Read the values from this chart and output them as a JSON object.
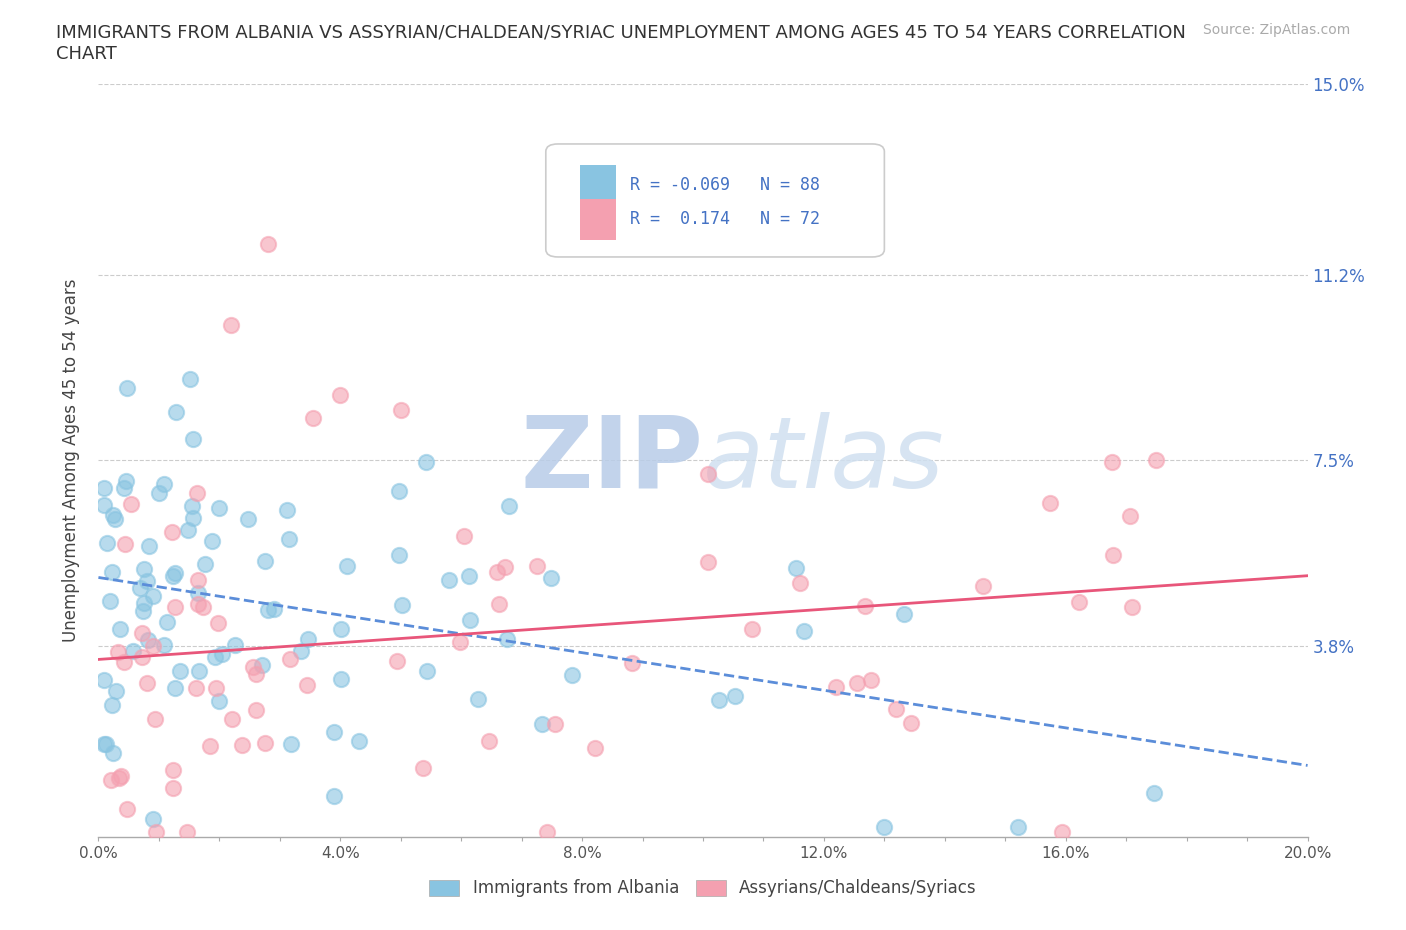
{
  "title_line1": "IMMIGRANTS FROM ALBANIA VS ASSYRIAN/CHALDEAN/SYRIAC UNEMPLOYMENT AMONG AGES 45 TO 54 YEARS CORRELATION",
  "title_line2": "CHART",
  "source": "Source: ZipAtlas.com",
  "ylabel": "Unemployment Among Ages 45 to 54 years",
  "xlim": [
    0.0,
    0.2
  ],
  "ylim": [
    0.0,
    0.15
  ],
  "ytick_positions": [
    0.0,
    0.038,
    0.075,
    0.112,
    0.15
  ],
  "ytick_labels": [
    "",
    "3.8%",
    "7.5%",
    "11.2%",
    "15.0%"
  ],
  "hline_positions": [
    0.038,
    0.075,
    0.112,
    0.15
  ],
  "watermark_top": "ZIP",
  "watermark_bottom": "atlas",
  "watermark_color": "#c8d8f0",
  "group1_color": "#89c4e1",
  "group2_color": "#f4a0b0",
  "group1_label": "Immigrants from Albania",
  "group2_label": "Assyrians/Chaldeans/Syriacs",
  "R1": -0.069,
  "N1": 88,
  "R2": 0.174,
  "N2": 72,
  "trend1_color": "#5b8dd9",
  "trend2_color": "#e8567a",
  "background_color": "#ffffff",
  "legend_text_color": "#4472c4",
  "axis_label_color": "#555555",
  "right_tick_color": "#4472c4"
}
